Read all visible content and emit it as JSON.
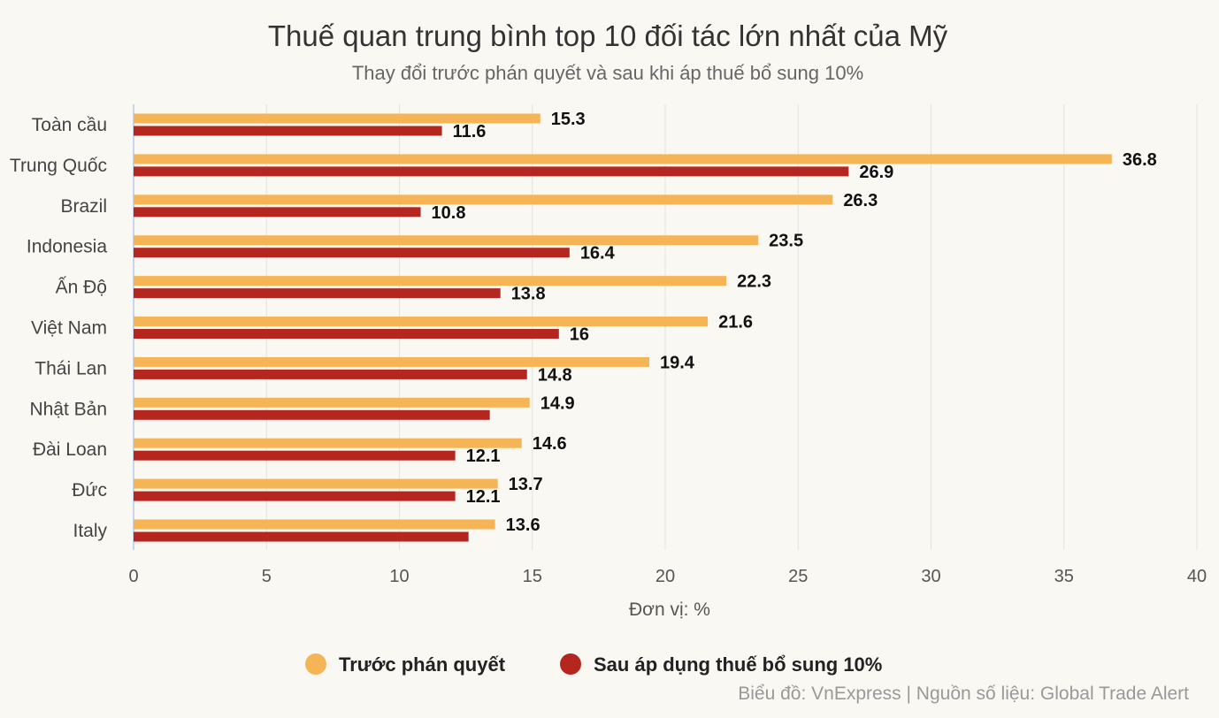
{
  "chart_data": {
    "type": "bar",
    "orientation": "horizontal",
    "title": "Thuế quan trung bình top 10 đối tác lớn nhất của Mỹ",
    "subtitle": "Thay đổi trước phán quyết và sau khi áp thuế bổ sung 10%",
    "xlabel": "Đơn vị: %",
    "xlim": [
      0,
      40
    ],
    "x_ticks": [
      "0",
      "5",
      "10",
      "15",
      "20",
      "25",
      "30",
      "35",
      "40"
    ],
    "grid": true,
    "legend_position": "bottom",
    "categories": [
      "Toàn cầu",
      "Trung Quốc",
      "Brazil",
      "Indonesia",
      "Ấn Độ",
      "Việt Nam",
      "Thái Lan",
      "Nhật Bản",
      "Đài Loan",
      "Đức",
      "Italy"
    ],
    "series": [
      {
        "name": "Trước phán quyết",
        "color": "#f5b556",
        "values": [
          15.3,
          36.8,
          26.3,
          23.5,
          22.3,
          21.6,
          19.4,
          14.9,
          14.6,
          13.7,
          13.6
        ],
        "labels": [
          "15.3",
          "36.8",
          "26.3",
          "23.5",
          "22.3",
          "21.6",
          "19.4",
          "14.9",
          "14.6",
          "13.7",
          "13.6"
        ]
      },
      {
        "name": "Sau áp dụng thuế bổ sung 10%",
        "color": "#b5261e",
        "values": [
          11.6,
          26.9,
          10.8,
          16.4,
          13.8,
          16,
          14.8,
          13.4,
          12.1,
          12.1,
          12.6
        ],
        "labels": [
          "11.6",
          "26.9",
          "10.8",
          "16.4",
          "13.8",
          "16",
          "14.8",
          "",
          "12.1",
          "12.1",
          ""
        ]
      }
    ],
    "credit": "Biểu đồ: VnExpress | Nguồn số liệu: Global Trade Alert"
  }
}
